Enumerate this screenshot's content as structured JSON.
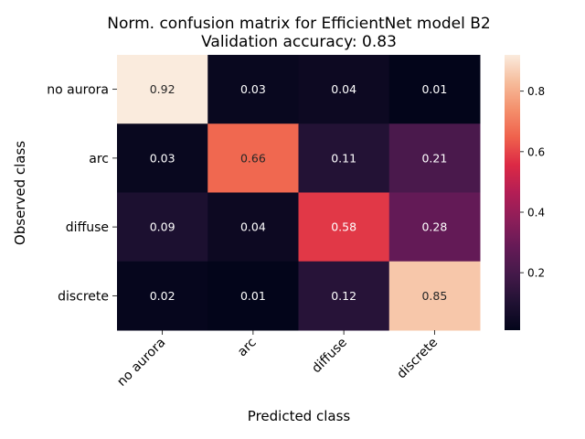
{
  "chart_data": {
    "type": "heatmap",
    "title": "Norm. confusion matrix for EfficientNet model B2",
    "subtitle": "Validation accuracy: 0.83",
    "xlabel": "Predicted class",
    "ylabel": "Observed class",
    "x_categories": [
      "no aurora",
      "arc",
      "diffuse",
      "discrete"
    ],
    "y_categories": [
      "no aurora",
      "arc",
      "diffuse",
      "discrete"
    ],
    "values": [
      [
        0.92,
        0.03,
        0.04,
        0.01
      ],
      [
        0.03,
        0.66,
        0.11,
        0.21
      ],
      [
        0.09,
        0.04,
        0.58,
        0.28
      ],
      [
        0.02,
        0.01,
        0.12,
        0.85
      ]
    ],
    "value_labels": [
      [
        "0.92",
        "0.03",
        "0.04",
        "0.01"
      ],
      [
        "0.03",
        "0.66",
        "0.11",
        "0.21"
      ],
      [
        "0.09",
        "0.04",
        "0.58",
        "0.28"
      ],
      [
        "0.02",
        "0.01",
        "0.12",
        "0.85"
      ]
    ],
    "colormap": "rocket",
    "color_range": [
      0.01,
      0.92
    ],
    "colorbar_ticks": [
      0.2,
      0.4,
      0.6,
      0.8
    ],
    "colorbar_tick_labels": [
      "0.2",
      "0.4",
      "0.6",
      "0.8"
    ],
    "grid": false,
    "legend": "colorbar-right"
  }
}
